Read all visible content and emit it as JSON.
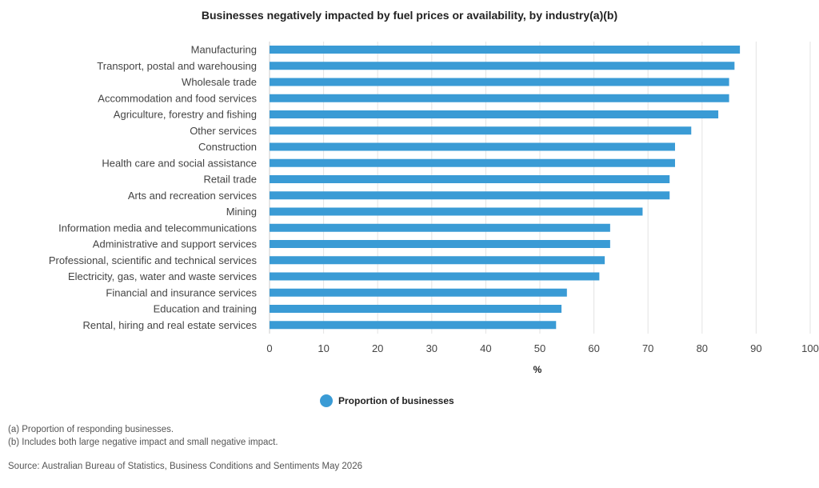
{
  "chart_data": {
    "type": "bar",
    "orientation": "horizontal",
    "title": "Businesses negatively impacted by fuel prices or availability, by industry(a)(b)",
    "xlabel": "%",
    "ylabel": "",
    "xlim": [
      0,
      100
    ],
    "ticks": [
      "0",
      "10",
      "20",
      "30",
      "40",
      "50",
      "60",
      "70",
      "80",
      "90",
      "100"
    ],
    "categories": [
      "Manufacturing",
      "Transport, postal and warehousing",
      "Wholesale trade",
      "Accommodation and food services",
      "Agriculture, forestry and fishing",
      "Other services",
      "Construction",
      "Health care and social assistance",
      "Retail trade",
      "Arts and recreation services",
      "Mining",
      "Information media and telecommunications",
      "Administrative and support services",
      "Professional, scientific and technical services",
      "Electricity, gas, water and waste services",
      "Financial and insurance services",
      "Education and training",
      "Rental, hiring and real estate services"
    ],
    "series": [
      {
        "name": "Proportion of businesses",
        "color": "#3a9bd5",
        "values": [
          87,
          86,
          85,
          85,
          83,
          78,
          75,
          75,
          74,
          74,
          69,
          63,
          63,
          62,
          61,
          55,
          54,
          53
        ]
      }
    ],
    "grid": "vertical",
    "legend_position": "bottom"
  },
  "notes": {
    "a": "(a) Proportion of responding businesses.",
    "b": "(b) Includes both large negative impact and small negative impact.",
    "source": "Source: Australian Bureau of Statistics, Business Conditions and Sentiments May 2026"
  },
  "colors": {
    "bar": "#3a9bd5",
    "grid": "#e3e3e3",
    "text": "#444444"
  }
}
